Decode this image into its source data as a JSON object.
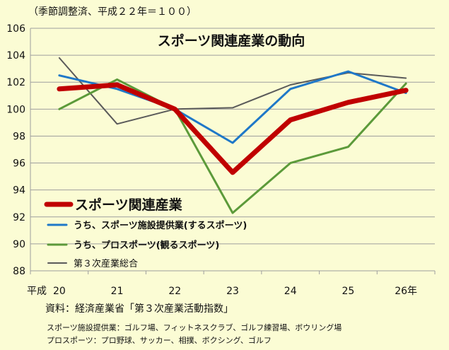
{
  "notes": {
    "index_base": "（季節調整済、平成２２年＝１００）",
    "source": "資料：経済産業省「第３次産業活動指数」",
    "definitions": [
      "スポーツ施設提供業：ゴルフ場、フィットネスクラブ、ゴルフ練習場、ボウリング場",
      "プロスポーツ：プロ野球、サッカー、相撲、ボクシング、ゴルフ"
    ]
  },
  "chart_data": {
    "type": "line",
    "title": "スポーツ関連産業の動向",
    "x_era_label": "平成",
    "categories": [
      "20",
      "21",
      "22",
      "23",
      "24",
      "25",
      "26年"
    ],
    "ylim": [
      88,
      106
    ],
    "yticks": [
      88,
      90,
      92,
      94,
      96,
      98,
      100,
      102,
      104,
      106
    ],
    "grid": "horizontal",
    "legend_position": "lower-left",
    "series": [
      {
        "name": "第３次産業総合",
        "color": "#5a5a5a",
        "values": [
          103.8,
          98.9,
          100.0,
          100.1,
          101.8,
          102.7,
          102.3
        ]
      },
      {
        "name": "うち、プロスポーツ(観るスポーツ)",
        "color": "#5c9a3a",
        "values": [
          100.0,
          102.2,
          100.0,
          92.3,
          96.0,
          97.2,
          101.9
        ]
      },
      {
        "name": "うち、スポーツ施設提供業(するスポーツ)",
        "color": "#1f78c8",
        "values": [
          102.5,
          101.5,
          100.0,
          97.5,
          101.5,
          102.8,
          101.2
        ]
      },
      {
        "name": "スポーツ関連産業",
        "color": "#c00000",
        "values": [
          101.5,
          101.8,
          100.0,
          95.3,
          99.2,
          100.5,
          101.4
        ]
      }
    ]
  }
}
